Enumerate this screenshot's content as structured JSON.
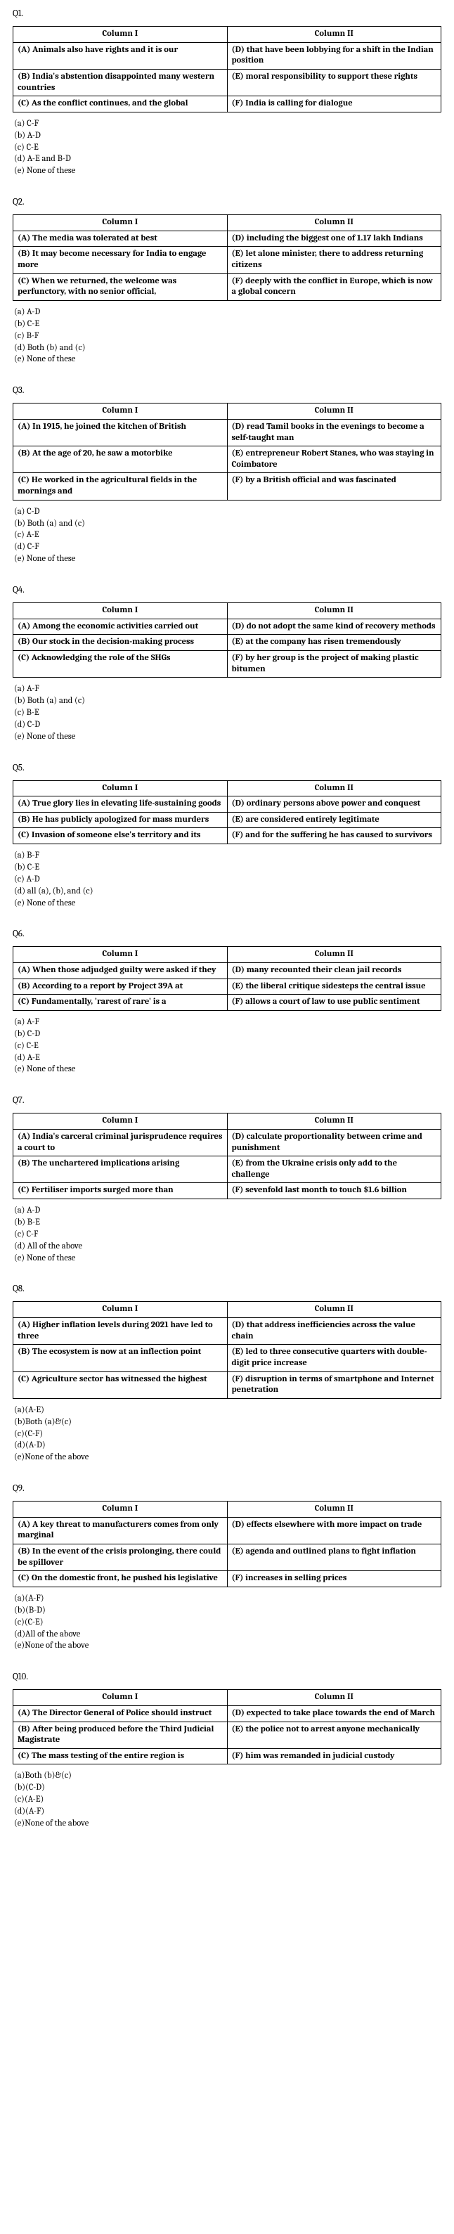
{
  "questions": [
    {
      "label": "Q1.",
      "headers": [
        "Column I",
        "Column II"
      ],
      "rows": [
        [
          "(A) Animals also have rights and it is our",
          "(D) that have been lobbying for a shift in the Indian position"
        ],
        [
          "(B) India's abstention disappointed many western countries",
          "(E) moral responsibility to support these rights"
        ],
        [
          "(C) As the conflict continues, and the global",
          "(F) India is calling for dialogue"
        ]
      ],
      "options": [
        "(a) C-F",
        "(b) A-D",
        "(c) C-E",
        "(d) A-E and B-D",
        "(e) None of these"
      ]
    },
    {
      "label": "Q2.",
      "headers": [
        "Column I",
        "Column II"
      ],
      "rows": [
        [
          "(A) The media was tolerated at best",
          "(D) including the biggest one of 1.17 lakh Indians"
        ],
        [
          "(B) It may become necessary for India to engage more",
          "(E) let alone minister, there to address returning citizens"
        ],
        [
          "(C) When we returned, the welcome was perfunctory, with no senior official,",
          "(F) deeply with the conflict in Europe, which is now a global concern"
        ]
      ],
      "options": [
        "(a) A-D",
        "(b) C-E",
        "(c) B-F",
        "(d) Both (b) and (c)",
        "(e) None of these"
      ]
    },
    {
      "label": "Q3.",
      "headers": [
        "Column I",
        "Column II"
      ],
      "rows": [
        [
          "(A) In 1915, he joined the kitchen of British",
          "(D) read Tamil books in the evenings to become a self-taught man"
        ],
        [
          "(B) At the age of 20, he saw a motorbike",
          "(E) entrepreneur Robert Stanes, who was staying in Coimbatore"
        ],
        [
          "(C) He worked in the agricultural fields in the mornings and",
          "(F) by a British official and was fascinated"
        ]
      ],
      "options": [
        "(a) C-D",
        "(b) Both (a) and (c)",
        "(c) A-E",
        "(d) C-F",
        "(e) None of these"
      ]
    },
    {
      "label": "Q4.",
      "headers": [
        "Column I",
        "Column II"
      ],
      "rows": [
        [
          "(A) Among the economic activities carried out",
          "(D) do not adopt the same kind of recovery methods"
        ],
        [
          "(B) Our stock in the decision-making process",
          "(E) at the company has risen tremendously"
        ],
        [
          "(C) Acknowledging the role of the SHGs",
          "(F) by her group is the project of making plastic bitumen"
        ]
      ],
      "options": [
        "(a) A-F",
        "(b) Both (a) and (c)",
        "(c) B-E",
        "(d) C-D",
        "(e) None of these"
      ]
    },
    {
      "label": "Q5.",
      "headers": [
        "Column I",
        "Column II"
      ],
      "rows": [
        [
          "(A) True glory lies in elevating life-sustaining goods",
          "(D) ordinary persons above power and conquest"
        ],
        [
          "(B) He has publicly apologized for mass murders",
          "(E) are considered entirely legitimate"
        ],
        [
          "(C) Invasion of someone else's territory and its",
          "(F) and for the suffering he has caused to survivors"
        ]
      ],
      "options": [
        "(a) B-F",
        "(b) C-E",
        "(c) A-D",
        "(d) all (a), (b), and (c)",
        "(e) None of these"
      ]
    },
    {
      "label": "Q6.",
      "headers": [
        "Column I",
        "Column II"
      ],
      "rows": [
        [
          "(A) When those adjudged guilty were asked if they",
          "(D) many recounted their clean jail records"
        ],
        [
          "(B) According to a report by Project 39A at",
          "(E) the liberal critique sidesteps the central issue"
        ],
        [
          "(C) Fundamentally, 'rarest of rare' is a",
          "(F) allows a court of law to use public sentiment"
        ]
      ],
      "options": [
        "(a) A-F",
        "(b) C-D",
        "(c) C-E",
        "(d) A-E",
        "(e) None of these"
      ]
    },
    {
      "label": "Q7.",
      "headers": [
        "Column I",
        "Column II"
      ],
      "rows": [
        [
          "(A) India's carceral criminal jurisprudence requires a court to",
          "(D) calculate proportionality between crime and punishment"
        ],
        [
          "(B) The unchartered implications arising",
          "(E) from the Ukraine crisis only add to the challenge"
        ],
        [
          "(C) Fertiliser imports surged more than",
          "(F) sevenfold last month to touch $1.6 billion"
        ]
      ],
      "options": [
        "(a) A-D",
        "(b) B-E",
        "(c) C-F",
        "(d) All of the above",
        "(e) None of these"
      ]
    },
    {
      "label": "Q8.",
      "headers": [
        "Column I",
        "Column II"
      ],
      "rows": [
        [
          "(A) Higher inflation levels during 2021 have led to three",
          "(D) that address inefficiencies across the value chain"
        ],
        [
          "(B) The ecosystem is now at an inflection point",
          "(E) led to three consecutive quarters with double-digit price increase"
        ],
        [
          "(C) Agriculture sector has witnessed the highest",
          "(F) disruption in terms of smartphone and Internet penetration"
        ]
      ],
      "options": [
        "(a)(A-E)",
        "(b)Both (a)&(c)",
        "(c)(C-F)",
        "(d)(A-D)",
        "(e)None of the above"
      ]
    },
    {
      "label": "Q9.",
      "headers": [
        "Column I",
        "Column II"
      ],
      "rows": [
        [
          "(A) A key threat to manufacturers comes from only marginal",
          "(D) effects elsewhere with more impact on trade"
        ],
        [
          "(B) In the event of the crisis prolonging, there could be spillover",
          "(E) agenda and outlined plans to fight inflation"
        ],
        [
          "(C) On the domestic front, he pushed his legislative",
          "(F) increases in selling prices"
        ]
      ],
      "options": [
        "(a)(A-F)",
        "(b)(B-D)",
        "(c)(C-E)",
        "(d)All of the above",
        "(e)None of the above"
      ]
    },
    {
      "label": "Q10.",
      "headers": [
        "Column I",
        "Column II"
      ],
      "rows": [
        [
          "(A) The Director General of Police should instruct",
          "(D) expected to take place towards the end of March"
        ],
        [
          "(B) After being produced before the Third Judicial Magistrate",
          "(E) the police not to arrest anyone mechanically"
        ],
        [
          "(C) The mass testing of the entire region is",
          "(F) him was remanded in judicial custody"
        ]
      ],
      "options": [
        "(a)Both (b)&(c)",
        "(b)(C-D)",
        "(c)(A-E)",
        "(d)(A-F)",
        "(e)None of the above"
      ]
    }
  ]
}
